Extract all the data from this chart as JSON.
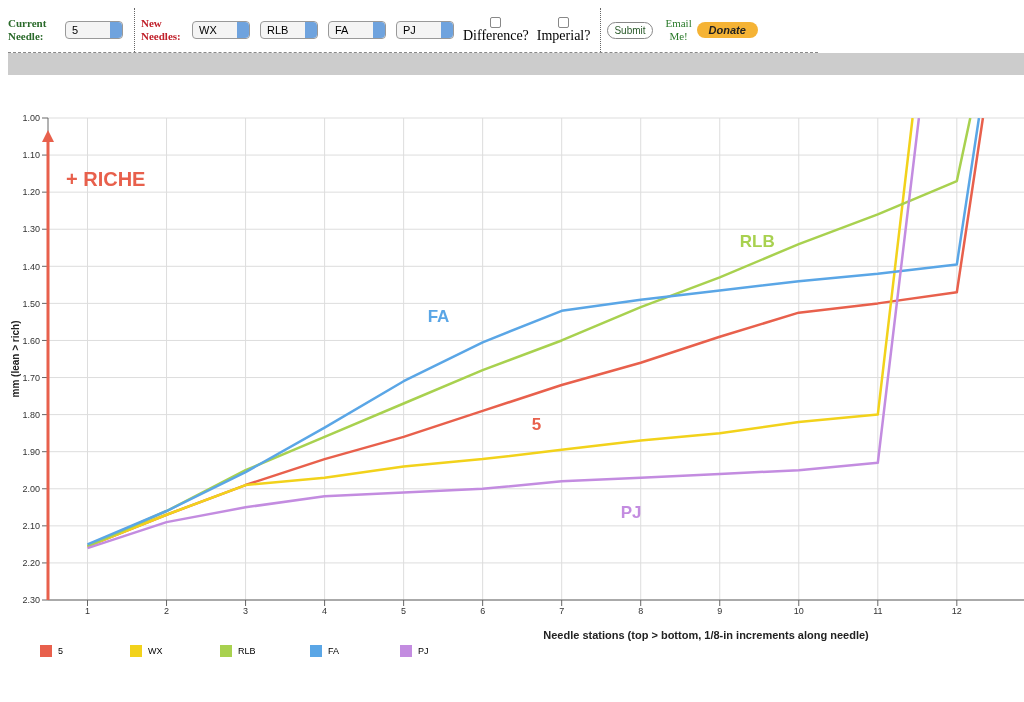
{
  "chart_data": {
    "type": "line",
    "xlabel": "Needle stations (top > bottom, 1/8-in increments along needle)",
    "ylabel": "mm (lean > rich)",
    "xlim": [
      0.5,
      12.85
    ],
    "xticks": [
      1,
      2,
      3,
      4,
      5,
      6,
      7,
      8,
      9,
      10,
      11,
      12
    ],
    "ylim": [
      2.3,
      1.0
    ],
    "yticks": [
      {
        "value": 1.0,
        "label": "1.00"
      },
      {
        "value": 1.1,
        "label": "1.10"
      },
      {
        "value": 1.2,
        "label": "1.20"
      },
      {
        "value": 1.3,
        "label": "1.30"
      },
      {
        "value": 1.4,
        "label": "1.40"
      },
      {
        "value": 1.5,
        "label": "1.50"
      },
      {
        "value": 1.6,
        "label": "1.60"
      },
      {
        "value": 1.7,
        "label": "1.70"
      },
      {
        "value": 1.8,
        "label": "1.80"
      },
      {
        "value": 1.9,
        "label": "1.90"
      },
      {
        "value": 2.0,
        "label": "2.00"
      },
      {
        "value": 2.1,
        "label": "2.10"
      },
      {
        "value": 2.2,
        "label": "2.20"
      },
      {
        "value": 2.3,
        "label": "2.30"
      }
    ],
    "grid": true,
    "legend": "bottom left",
    "marker": "none",
    "line_style": "solid",
    "series": [
      {
        "name": "5",
        "color": "#e8604c",
        "x": [
          1,
          2,
          3,
          4,
          5,
          6,
          7,
          8,
          9,
          10,
          11,
          12,
          12.33
        ],
        "values": [
          2.155,
          2.07,
          1.99,
          1.92,
          1.86,
          1.79,
          1.72,
          1.66,
          1.59,
          1.525,
          1.5,
          1.47,
          1.0
        ]
      },
      {
        "name": "WX",
        "color": "#f2d21b",
        "x": [
          1,
          2,
          3,
          4,
          5,
          6,
          7,
          8,
          9,
          10,
          11,
          11.44
        ],
        "values": [
          2.155,
          2.07,
          1.99,
          1.97,
          1.94,
          1.92,
          1.895,
          1.87,
          1.85,
          1.82,
          1.8,
          1.0
        ]
      },
      {
        "name": "RLB",
        "color": "#a8d14f",
        "x": [
          1,
          2,
          3,
          4,
          5,
          6,
          7,
          8,
          9,
          10,
          11,
          12,
          12.17
        ],
        "values": [
          2.155,
          2.06,
          1.95,
          1.86,
          1.77,
          1.68,
          1.6,
          1.51,
          1.43,
          1.34,
          1.26,
          1.17,
          1.0
        ]
      },
      {
        "name": "FA",
        "color": "#5aa6e6",
        "x": [
          1,
          2,
          3,
          4,
          5,
          6,
          7,
          8,
          9,
          10,
          11,
          12,
          12.28
        ],
        "values": [
          2.15,
          2.06,
          1.955,
          1.835,
          1.71,
          1.605,
          1.52,
          1.49,
          1.465,
          1.44,
          1.42,
          1.395,
          1.0
        ]
      },
      {
        "name": "PJ",
        "color": "#c38ce0",
        "x": [
          1,
          2,
          3,
          4,
          5,
          6,
          7,
          8,
          9,
          10,
          11,
          11.52
        ],
        "values": [
          2.16,
          2.09,
          2.05,
          2.02,
          2.01,
          2.0,
          1.98,
          1.97,
          1.96,
          1.95,
          1.93,
          1.0
        ]
      }
    ],
    "annotations": [
      "Current Needle:",
      "5",
      "New Needles:",
      "WX",
      "RLB",
      "FA",
      "PJ",
      "Difference?",
      "Imperial?",
      "Submit",
      "Email Me!",
      "Donate",
      "+ RICHE"
    ]
  }
}
